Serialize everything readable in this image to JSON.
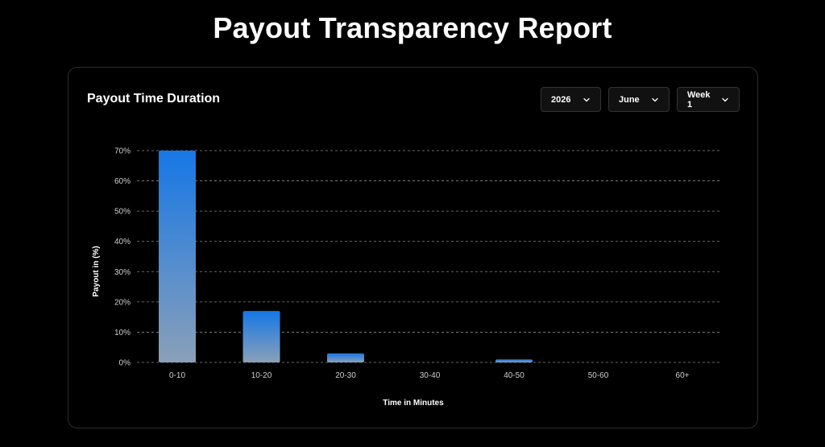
{
  "page": {
    "title": "Payout Transparency Report"
  },
  "card": {
    "title": "Payout Time Duration",
    "filters": {
      "year": "2026",
      "month": "June",
      "week": "Week 1"
    }
  },
  "colors": {
    "bar_top": "#1677e6",
    "bar_bottom": "#8aa0b8",
    "grid": "#8a8a8a",
    "background": "#000000"
  },
  "chart_data": {
    "type": "bar",
    "categories": [
      "0-10",
      "10-20",
      "20-30",
      "30-40",
      "40-50",
      "50-60",
      "60+"
    ],
    "values": [
      70,
      17,
      3,
      0,
      1,
      0,
      0
    ],
    "xlabel": "Time in Minutes",
    "ylabel": "Payout in (%)",
    "ylim": [
      0,
      70
    ],
    "yticks": [
      0,
      10,
      20,
      30,
      40,
      50,
      60,
      70
    ],
    "ytick_labels": [
      "0%",
      "10%",
      "20%",
      "30%",
      "40%",
      "50%",
      "60%",
      "70%"
    ],
    "grid": true,
    "grid_style": "dashed",
    "legend": "none"
  }
}
